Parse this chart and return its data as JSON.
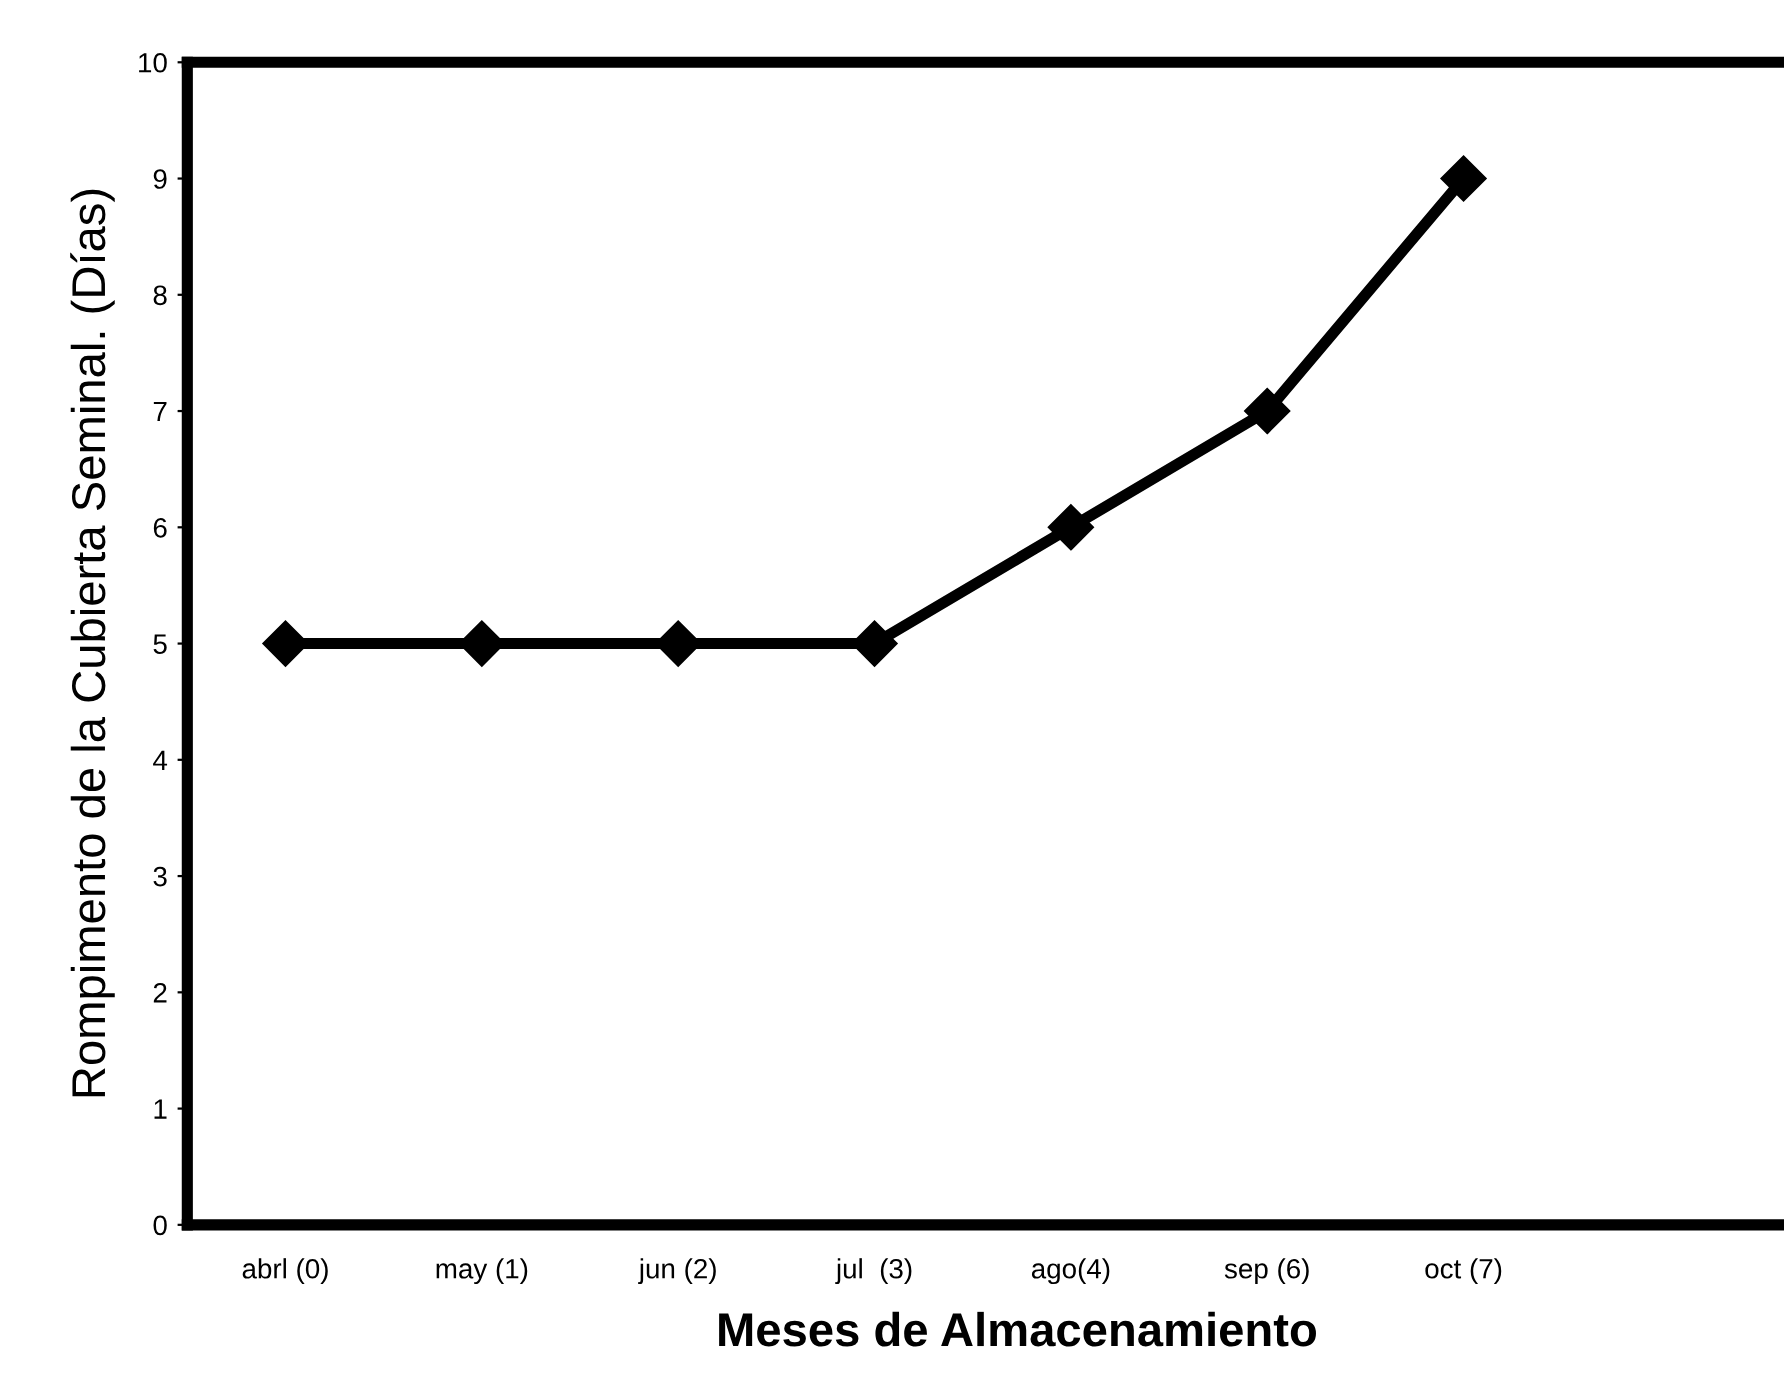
{
  "chart_data": {
    "type": "line",
    "xlabel": "Meses de Almacenamiento",
    "ylabel": "Rompimento de la Cubierta Seminal. (Días)",
    "categories": [
      "abrl (0)",
      "may (1)",
      "jun (2)",
      "jul  (3)",
      "ago(4)",
      "sep (6)",
      "oct (7)"
    ],
    "series": [
      {
        "color": "#000000",
        "values": [
          5,
          5,
          5,
          5,
          6,
          7,
          9
        ]
      }
    ],
    "ylim": [
      0,
      10
    ],
    "yticks": [
      0,
      1,
      2,
      3,
      4,
      5,
      6,
      7,
      8,
      9,
      10
    ],
    "grid": false,
    "legend": false,
    "marker": "diamond",
    "line_style": "solid"
  }
}
